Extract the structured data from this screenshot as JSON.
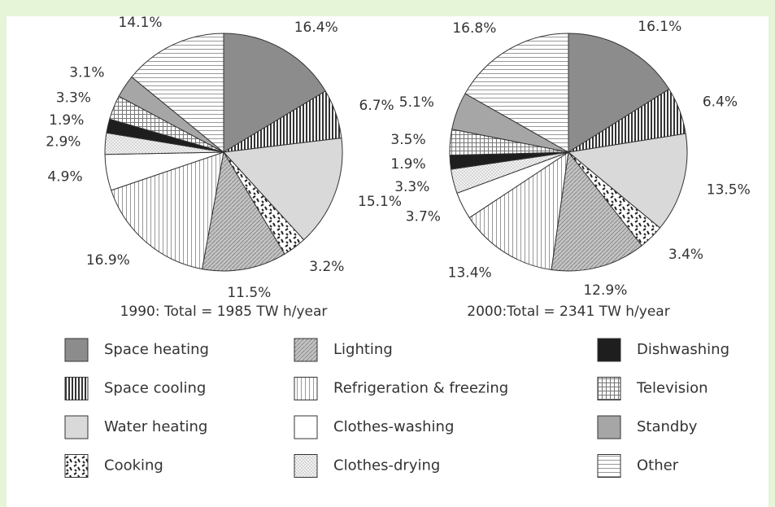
{
  "chart_data": [
    {
      "type": "pie",
      "title": "1990: Total = 1985 TW h/year",
      "categories": [
        "Space heating",
        "Space cooling",
        "Water heating",
        "Cooking",
        "Lighting",
        "Refrigeration & freezing",
        "Clothes-washing",
        "Clothes-drying",
        "Dishwashing",
        "Television",
        "Standby",
        "Other"
      ],
      "values": [
        16.4,
        6.7,
        15.1,
        3.2,
        11.5,
        16.9,
        4.9,
        2.9,
        1.9,
        3.3,
        3.1,
        14.1
      ],
      "value_labels": [
        "16.4%",
        "6.7%",
        "15.1%",
        "3.2%",
        "11.5%",
        "16.9%",
        "4.9%",
        "2.9%",
        "1.9%",
        "3.3%",
        "3.1%",
        "14.1%"
      ],
      "patterns": [
        "solid-dark",
        "vstripe-dense",
        "solid-light",
        "blobs",
        "diag-hatch",
        "vstripe-thin",
        "solid-white",
        "dots",
        "solid-black",
        "grid",
        "solid-mid",
        "hstripe"
      ]
    },
    {
      "type": "pie",
      "title": "2000:Total = 2341 TW h/year",
      "categories": [
        "Space heating",
        "Space cooling",
        "Water heating",
        "Cooking",
        "Lighting",
        "Refrigeration & freezing",
        "Clothes-washing",
        "Clothes-drying",
        "Dishwashing",
        "Television",
        "Standby",
        "Other"
      ],
      "values": [
        16.1,
        6.4,
        13.5,
        3.4,
        12.9,
        13.4,
        3.7,
        3.3,
        1.9,
        3.5,
        5.1,
        16.8
      ],
      "value_labels": [
        "16.1%",
        "6.4%",
        "13.5%",
        "3.4%",
        "12.9%",
        "13.4%",
        "3.7%",
        "3.3%",
        "1.9%",
        "3.5%",
        "5.1%",
        "16.8%"
      ],
      "patterns": [
        "solid-dark",
        "vstripe-dense",
        "solid-light",
        "blobs",
        "diag-hatch",
        "vstripe-thin",
        "solid-white",
        "dots",
        "solid-black",
        "grid",
        "solid-mid",
        "hstripe"
      ]
    }
  ]
}
